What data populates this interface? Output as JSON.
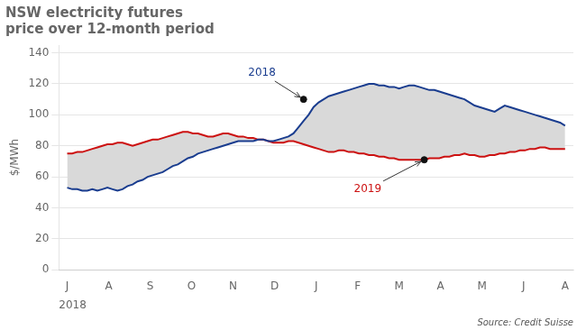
{
  "chart_data": {
    "type": "fill_between",
    "title": [
      "NSW electricity futures",
      "price over 12-month period"
    ],
    "ylabel": "$/MWh",
    "xlabel": "2018",
    "source": "Source: Credit Suisse",
    "color": "#d9d9d9",
    "grid": "y",
    "xlim": [
      -0.2,
      12.2
    ],
    "xticks": [
      {
        "value": 0,
        "label": "J"
      },
      {
        "value": 1,
        "label": "A"
      },
      {
        "value": 2,
        "label": "S"
      },
      {
        "value": 3,
        "label": "O"
      },
      {
        "value": 4,
        "label": "N"
      },
      {
        "value": 5,
        "label": "D"
      },
      {
        "value": 6,
        "label": "J"
      },
      {
        "value": 7,
        "label": "F"
      },
      {
        "value": 8,
        "label": "M"
      },
      {
        "value": 9,
        "label": "A"
      },
      {
        "value": 10,
        "label": "M"
      },
      {
        "value": 11,
        "label": "J"
      },
      {
        "value": 12,
        "label": "A"
      }
    ],
    "ylim": [
      0,
      145
    ],
    "yticks": [
      0,
      20,
      40,
      60,
      80,
      100,
      120,
      140
    ],
    "x": [
      0,
      0.121212,
      0.242424,
      0.363636,
      0.484848,
      0.606061,
      0.727273,
      0.848485,
      0.969697,
      1.090909,
      1.212121,
      1.333333,
      1.454545,
      1.575758,
      1.69697,
      1.818182,
      1.939394,
      2.060606,
      2.181818,
      2.30303,
      2.424242,
      2.545455,
      2.666667,
      2.787879,
      2.909091,
      3.030303,
      3.151515,
      3.272727,
      3.393939,
      3.515152,
      3.636364,
      3.757576,
      3.878788,
      4,
      4.121212,
      4.242424,
      4.363636,
      4.484848,
      4.606061,
      4.727273,
      4.848485,
      4.969697,
      5.090909,
      5.212121,
      5.333333,
      5.454545,
      5.575758,
      5.69697,
      5.818182,
      5.939394,
      6.060606,
      6.181818,
      6.30303,
      6.424242,
      6.545455,
      6.666667,
      6.787879,
      6.909091,
      7.030303,
      7.151515,
      7.272727,
      7.393939,
      7.515152,
      7.636364,
      7.757576,
      7.878788,
      8,
      8.121212,
      8.242424,
      8.363636,
      8.484848,
      8.606061,
      8.727273,
      8.848485,
      8.969697,
      9.090909,
      9.212121,
      9.333333,
      9.454545,
      9.575758,
      9.69697,
      9.818182,
      9.939394,
      10.060606,
      10.181818,
      10.30303,
      10.424242,
      10.545455,
      10.666667,
      10.787879,
      10.909091,
      11.030303,
      11.151515,
      11.272727,
      11.393939,
      11.515152,
      11.636364,
      11.757576,
      11.878788,
      12
    ],
    "series": [
      {
        "name": "2018",
        "color": "#1a3d8f",
        "values": [
          53,
          52,
          52,
          51,
          51,
          52,
          51,
          52,
          53,
          52,
          51,
          52,
          54,
          55,
          57,
          58,
          60,
          61,
          62,
          63,
          65,
          67,
          68,
          70,
          72,
          73,
          75,
          76,
          77,
          78,
          79,
          80,
          81,
          82,
          83,
          83,
          83,
          83,
          84,
          84,
          83,
          83,
          84,
          85,
          86,
          88,
          92,
          96,
          100,
          105,
          108,
          110,
          112,
          113,
          114,
          115,
          116,
          117,
          118,
          119,
          120,
          120,
          119,
          119,
          118,
          118,
          117,
          118,
          119,
          119,
          118,
          117,
          116,
          116,
          115,
          114,
          113,
          112,
          111,
          110,
          108,
          106,
          105,
          104,
          103,
          102,
          104,
          106,
          105,
          104,
          103,
          102,
          101,
          100,
          99,
          98,
          97,
          96,
          95,
          93
        ]
      },
      {
        "name": "2019",
        "color": "#cc1111",
        "values": [
          75,
          75,
          76,
          76,
          77,
          78,
          79,
          80,
          81,
          81,
          82,
          82,
          81,
          80,
          81,
          82,
          83,
          84,
          84,
          85,
          86,
          87,
          88,
          89,
          89,
          88,
          88,
          87,
          86,
          86,
          87,
          88,
          88,
          87,
          86,
          86,
          85,
          85,
          84,
          84,
          83,
          82,
          82,
          82,
          83,
          83,
          82,
          81,
          80,
          79,
          78,
          77,
          76,
          76,
          77,
          77,
          76,
          76,
          75,
          75,
          74,
          74,
          73,
          73,
          72,
          72,
          71,
          71,
          71,
          71,
          71,
          71,
          72,
          72,
          72,
          73,
          73,
          74,
          74,
          75,
          74,
          74,
          73,
          73,
          74,
          74,
          75,
          75,
          76,
          76,
          77,
          77,
          78,
          78,
          79,
          79,
          78,
          78,
          78,
          78
        ]
      }
    ],
    "annotations": [
      {
        "text": "2018",
        "color": "#1a3d8f",
        "x": 5.69697,
        "y": 110,
        "text_x": 4.363636,
        "text_y": 127
      },
      {
        "text": "2019",
        "color": "#cc1111",
        "x": 8.606061,
        "y": 71,
        "text_x": 6.909091,
        "text_y": 52
      }
    ]
  }
}
